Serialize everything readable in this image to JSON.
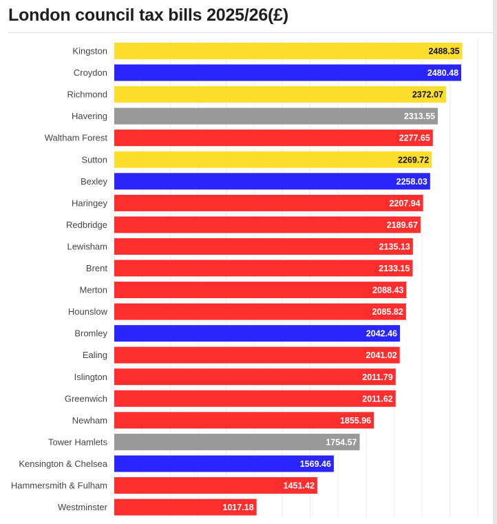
{
  "chart_data": {
    "type": "bar",
    "orientation": "horizontal",
    "title": "London council tax bills 2025/26(£)",
    "xlim": [
      0,
      2600
    ],
    "grid": true,
    "legend": "none",
    "colors": {
      "red": "#fc2e2e",
      "blue": "#2a25fb",
      "yellow": "#fede2d",
      "grey": "#999999"
    },
    "categories": [
      "Kingston",
      "Croydon",
      "Richmond",
      "Havering",
      "Waltham Forest",
      "Sutton",
      "Bexley",
      "Haringey",
      "Redbridge",
      "Lewisham",
      "Brent",
      "Merton",
      "Hounslow",
      "Bromley",
      "Ealing",
      "Islington",
      "Greenwich",
      "Newham",
      "Tower Hamlets",
      "Kensington & Chelsea",
      "Hammersmith & Fulham",
      "Westminster"
    ],
    "values": [
      2488.35,
      2480.48,
      2372.07,
      2313.55,
      2277.65,
      2269.72,
      2258.03,
      2207.94,
      2189.67,
      2135.13,
      2133.15,
      2088.43,
      2085.82,
      2042.46,
      2041.02,
      2011.79,
      2011.62,
      1855.96,
      1754.57,
      1569.46,
      1451.42,
      1017.18
    ],
    "value_labels": [
      "2488.35",
      "2480.48",
      "2372.07",
      "2313.55",
      "2277.65",
      "2269.72",
      "2258.03",
      "2207.94",
      "2189.67",
      "2135.13",
      "2133.15",
      "2088.43",
      "2085.82",
      "2042.46",
      "2041.02",
      "2011.79",
      "2011.62",
      "1855.96",
      "1754.57",
      "1569.46",
      "1451.42",
      "1017.18"
    ],
    "bar_colors": [
      "yellow",
      "blue",
      "yellow",
      "grey",
      "red",
      "yellow",
      "blue",
      "red",
      "red",
      "red",
      "red",
      "red",
      "red",
      "blue",
      "red",
      "red",
      "red",
      "red",
      "grey",
      "blue",
      "red",
      "red"
    ]
  }
}
